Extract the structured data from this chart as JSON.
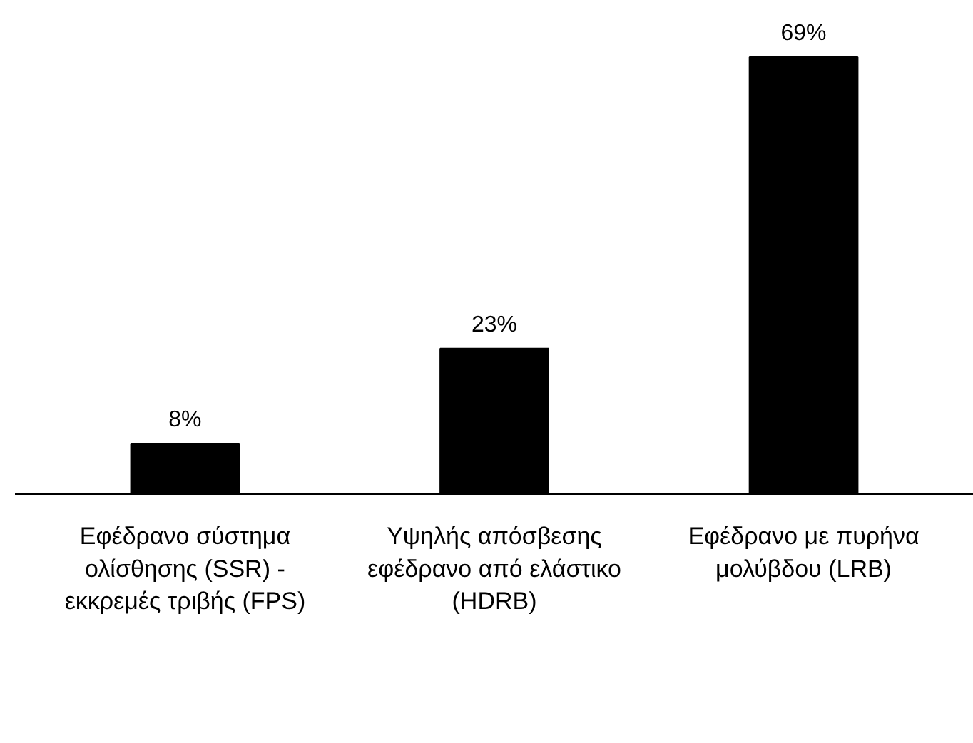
{
  "chart_data": {
    "type": "bar",
    "categories": [
      "Εφέδρανο σύστημα ολίσθησης (SSR) - εκκρεμές τριβής (FPS)",
      "Υψηλής απόσβεσης εφέδρανο από ελάστικο (HDRB)",
      "Εφέδρανο με πυρήνα μολύβδου (LRB)"
    ],
    "values": [
      8,
      23,
      69
    ],
    "color": "#000000",
    "value_labels": [
      "8%",
      "23%",
      "69%"
    ]
  }
}
